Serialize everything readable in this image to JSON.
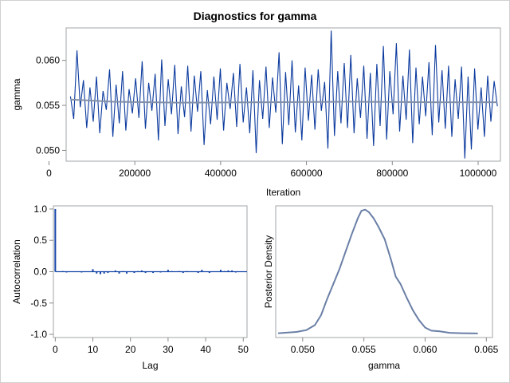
{
  "title": "Diagnostics for gamma",
  "colors": {
    "trace": "#0b3a9e",
    "mean_line": "#8290a8",
    "acf": "#1546a8",
    "density": "#6a7fa6",
    "frame": "#a0a4aa"
  },
  "chart_data": [
    {
      "type": "line",
      "name": "trace-plot",
      "xlabel": "Iteration",
      "ylabel": "gamma",
      "xlim": [
        40000,
        1052000
      ],
      "ylim": [
        0.0488,
        0.0636
      ],
      "xticks": [
        "0",
        "200000",
        "400000",
        "600000",
        "800000",
        "1000000"
      ],
      "xtick_values": [
        0,
        200000,
        400000,
        600000,
        800000,
        1000000
      ],
      "yticks": [
        "0.050",
        "0.055",
        "0.060"
      ],
      "ytick_values": [
        0.05,
        0.055,
        0.06
      ],
      "x_start": 50000,
      "x_end": 1045000,
      "values": [
        0.056,
        0.0535,
        0.0611,
        0.0548,
        0.0578,
        0.0525,
        0.057,
        0.0532,
        0.0582,
        0.0519,
        0.0566,
        0.0545,
        0.059,
        0.0515,
        0.0573,
        0.053,
        0.0588,
        0.0522,
        0.0568,
        0.0541,
        0.058,
        0.0536,
        0.0599,
        0.0524,
        0.0575,
        0.0544,
        0.0585,
        0.0511,
        0.0601,
        0.0527,
        0.0579,
        0.054,
        0.0595,
        0.0518,
        0.0571,
        0.0537,
        0.0594,
        0.0521,
        0.0583,
        0.0543,
        0.0588,
        0.0506,
        0.0567,
        0.0529,
        0.0582,
        0.0534,
        0.0591,
        0.0522,
        0.0575,
        0.0546,
        0.0586,
        0.0526,
        0.0596,
        0.0531,
        0.057,
        0.0519,
        0.0589,
        0.0497,
        0.0578,
        0.0535,
        0.0593,
        0.0525,
        0.0581,
        0.0542,
        0.0609,
        0.0507,
        0.0587,
        0.0528,
        0.06,
        0.052,
        0.0572,
        0.0511,
        0.0592,
        0.0533,
        0.0584,
        0.0523,
        0.059,
        0.0544,
        0.0576,
        0.0502,
        0.0633,
        0.0516,
        0.0588,
        0.053,
        0.0597,
        0.0525,
        0.0606,
        0.0519,
        0.058,
        0.0536,
        0.0594,
        0.0513,
        0.0586,
        0.0505,
        0.0596,
        0.0527,
        0.0616,
        0.0512,
        0.0588,
        0.054,
        0.0619,
        0.0521,
        0.0583,
        0.0534,
        0.0612,
        0.0508,
        0.0592,
        0.0529,
        0.0582,
        0.0538,
        0.0598,
        0.0517,
        0.0617,
        0.0531,
        0.0589,
        0.0524,
        0.0594,
        0.0515,
        0.0579,
        0.0535,
        0.0593,
        0.0491,
        0.0582,
        0.0501,
        0.0591,
        0.0523,
        0.057,
        0.0515,
        0.0583,
        0.0532,
        0.0577,
        0.0549
      ],
      "mean_line": {
        "x": [
          50000,
          150000,
          300000,
          500000,
          700000,
          900000,
          1045000
        ],
        "y": [
          0.05565,
          0.0554,
          0.0553,
          0.05535,
          0.0554,
          0.05535,
          0.05535
        ]
      }
    },
    {
      "type": "bar",
      "name": "autocorrelation",
      "xlabel": "Lag",
      "ylabel": "Autocorrelation",
      "xlim": [
        -0.5,
        51
      ],
      "ylim": [
        -1.05,
        1.05
      ],
      "xticks": [
        "0",
        "10",
        "20",
        "30",
        "40",
        "50"
      ],
      "xtick_values": [
        0,
        10,
        20,
        30,
        40,
        50
      ],
      "yticks": [
        "-1.0",
        "-0.5",
        "0.0",
        "0.5",
        "1.0"
      ],
      "ytick_values": [
        -1.0,
        -0.5,
        0.0,
        0.5,
        1.0
      ],
      "lags": [
        0,
        1,
        2,
        3,
        4,
        5,
        6,
        7,
        8,
        9,
        10,
        11,
        12,
        13,
        14,
        15,
        16,
        17,
        18,
        19,
        20,
        21,
        22,
        23,
        24,
        25,
        26,
        27,
        28,
        29,
        30,
        31,
        32,
        33,
        34,
        35,
        36,
        37,
        38,
        39,
        40,
        41,
        42,
        43,
        44,
        45,
        46,
        47,
        48,
        49,
        50
      ],
      "values": [
        1.0,
        0.0,
        0.01,
        -0.01,
        0.0,
        0.0,
        0.0,
        -0.01,
        0.0,
        0.0,
        0.04,
        -0.03,
        -0.04,
        -0.03,
        -0.02,
        0.0,
        0.02,
        -0.03,
        0.01,
        -0.03,
        0.0,
        -0.02,
        0.01,
        0.02,
        -0.02,
        0.0,
        -0.02,
        0.0,
        -0.01,
        0.0,
        0.03,
        0.01,
        0.0,
        0.01,
        -0.02,
        0.01,
        0.0,
        0.0,
        -0.02,
        0.03,
        0.0,
        -0.02,
        0.0,
        0.0,
        0.03,
        0.01,
        0.02,
        0.02,
        -0.01,
        0.0,
        0.0
      ]
    },
    {
      "type": "line",
      "name": "posterior-density",
      "xlabel": "gamma",
      "ylabel": "Posterior Density",
      "xlim": [
        0.0478,
        0.0655
      ],
      "ylim": [
        -0.03,
        1.03
      ],
      "xticks": [
        "0.050",
        "0.055",
        "0.060",
        "0.065"
      ],
      "xtick_values": [
        0.05,
        0.055,
        0.06,
        0.065
      ],
      "x": [
        0.048,
        0.0495,
        0.0503,
        0.051,
        0.0515,
        0.052,
        0.0525,
        0.053,
        0.0535,
        0.054,
        0.0545,
        0.0548,
        0.0551,
        0.0554,
        0.0558,
        0.0562,
        0.0567,
        0.0572,
        0.0576,
        0.058,
        0.0585,
        0.059,
        0.0595,
        0.06,
        0.0605,
        0.0612,
        0.062,
        0.063,
        0.0643
      ],
      "y": [
        0.005,
        0.015,
        0.03,
        0.07,
        0.15,
        0.28,
        0.4,
        0.52,
        0.66,
        0.8,
        0.93,
        0.99,
        1.0,
        0.98,
        0.93,
        0.86,
        0.76,
        0.6,
        0.46,
        0.4,
        0.29,
        0.19,
        0.11,
        0.05,
        0.025,
        0.02,
        0.008,
        0.005,
        0.003
      ]
    }
  ]
}
